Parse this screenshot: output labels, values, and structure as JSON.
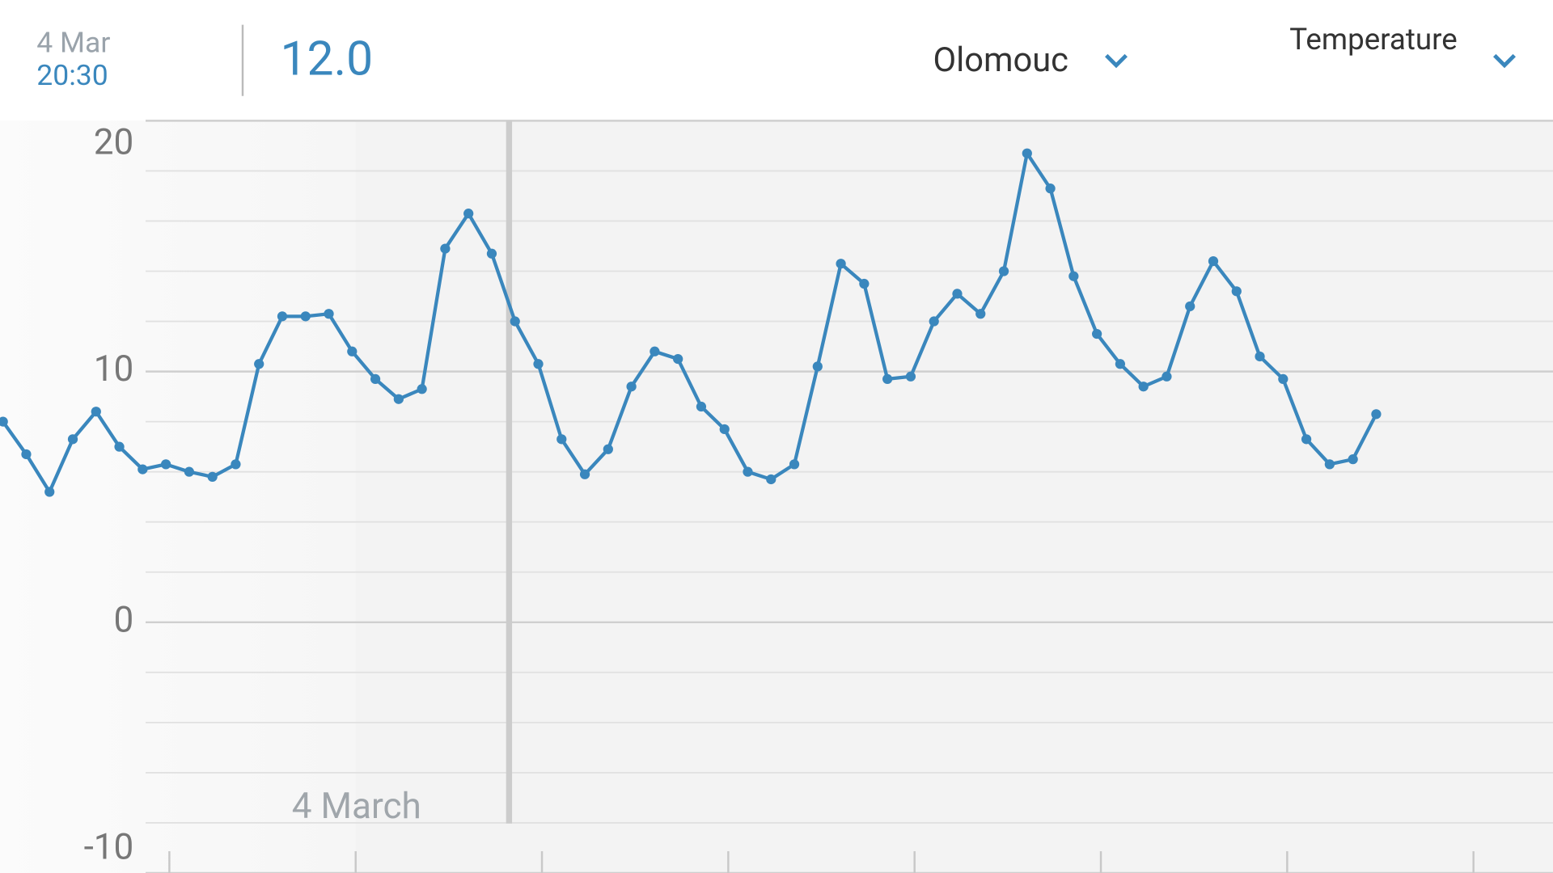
{
  "header": {
    "date": "4 Mar",
    "time": "20:30",
    "value": "12.0",
    "location": "Olomouc",
    "metric": "Temperature"
  },
  "chart_data": {
    "type": "line",
    "color": "#3a87bd",
    "values": [
      8.0,
      6.7,
      5.2,
      7.3,
      8.4,
      7.0,
      6.1,
      6.3,
      6.0,
      5.8,
      6.3,
      10.3,
      12.2,
      12.2,
      12.3,
      10.8,
      9.7,
      8.9,
      9.3,
      14.9,
      16.3,
      14.7,
      12.0,
      10.3,
      7.3,
      5.9,
      6.9,
      9.4,
      10.8,
      10.5,
      8.6,
      7.7,
      6.0,
      5.7,
      6.3,
      10.2,
      14.3,
      13.5,
      9.7,
      9.8,
      12.0,
      13.1,
      12.3,
      14.0,
      18.7,
      17.3,
      13.8,
      11.5,
      10.3,
      9.4,
      9.8,
      12.6,
      14.4,
      13.2,
      10.6,
      9.7,
      7.3,
      6.3,
      6.5,
      8.3
    ],
    "ylim": [
      -10,
      20
    ],
    "yticks": [
      -10,
      0,
      10,
      20
    ],
    "minor_yticks": [
      -8,
      -6,
      -4,
      -2,
      2,
      4,
      6,
      8,
      12,
      14,
      16,
      18
    ],
    "grid": true,
    "annotation": "4 March"
  }
}
